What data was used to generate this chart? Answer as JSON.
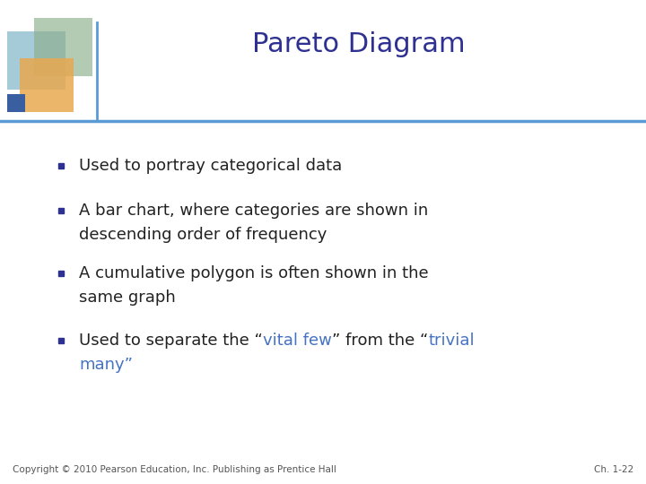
{
  "title": "Pareto Diagram",
  "title_color": "#2E3191",
  "title_fontsize": 22,
  "background_color": "#FFFFFF",
  "header_line_color": "#5B9BD5",
  "bullet_color": "#2E3191",
  "footer_text": "Copyright © 2010 Pearson Education, Inc. Publishing as Prentice Hall",
  "footer_right": "Ch. 1-22",
  "footer_color": "#555555",
  "footer_fontsize": 7.5,
  "body_fontsize": 13,
  "sq1_color": "#7FB4C8",
  "sq2_color": "#8BAF8A",
  "sq3_color": "#E8A850",
  "sq4_color": "#3A5FA0",
  "blue_highlight": "#4472C4",
  "dark_text": "#222222"
}
